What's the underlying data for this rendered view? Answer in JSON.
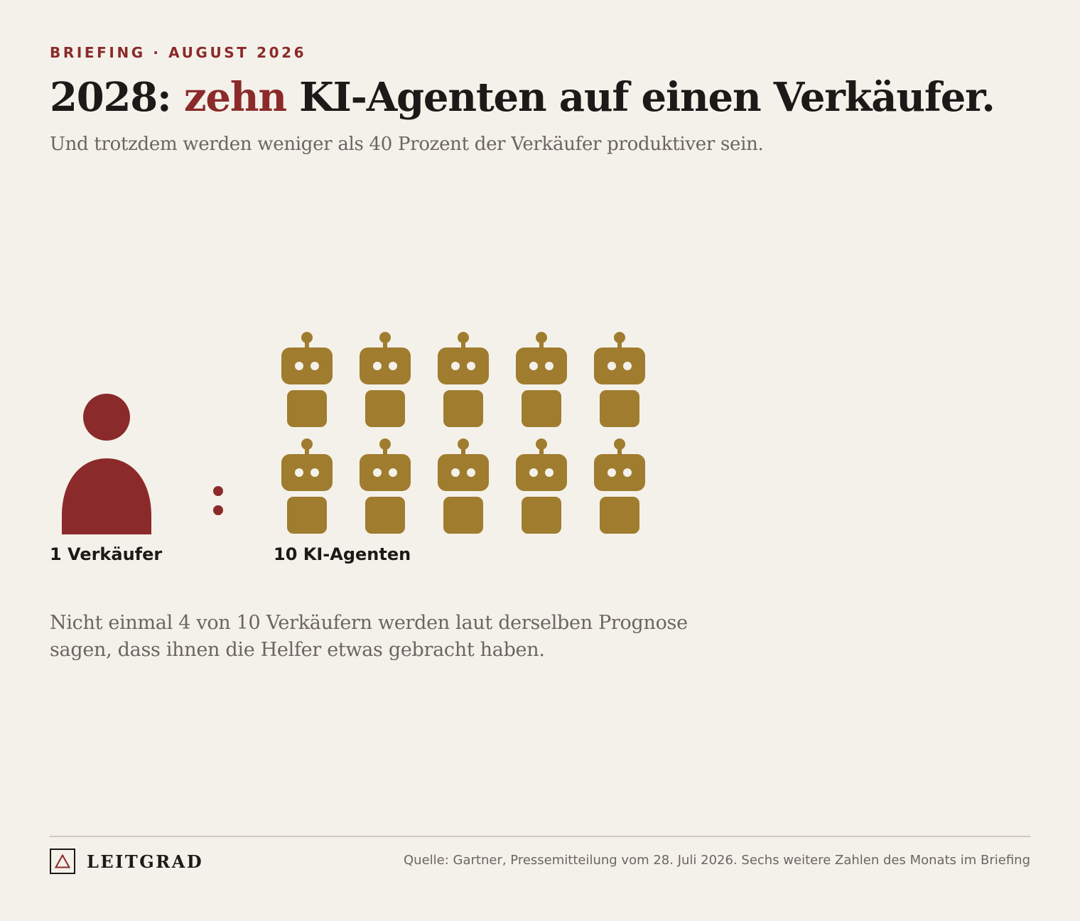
{
  "header": {
    "kicker": "BRIEFING · AUGUST 2026",
    "headline_pre": "2028: ",
    "headline_accent": "zehn",
    "headline_post": " KI-Agenten auf einen Verkäufer.",
    "subhead": "Und trotzdem werden weniger als 40 Prozent der Verkäufer produktiver sein."
  },
  "ratio": {
    "sellers": 1,
    "agents": 10,
    "seller_label": "1 Verkäufer",
    "agents_label": "10 KI-Agenten",
    "icons": {
      "seller": "person-icon",
      "agent": "robot-icon",
      "separator": "colon-icon"
    }
  },
  "note": "Nicht einmal 4 von 10 Verkäufern werden laut derselben Prognose sagen, dass ihnen die Helfer etwas gebracht haben.",
  "footer": {
    "brand": "LEITGRAD",
    "brand_icon": "triangle-icon",
    "source": "Quelle: Gartner, Pressemitteilung vom 28. Juli 2026. Sechs weitere Zahlen des Monats im Briefing"
  },
  "colors": {
    "background": "#f4f1ea",
    "accent_red": "#8b2a2a",
    "robot_gold": "#a07c2f",
    "text_dark": "#1c1a18",
    "text_muted": "#6a6560"
  }
}
